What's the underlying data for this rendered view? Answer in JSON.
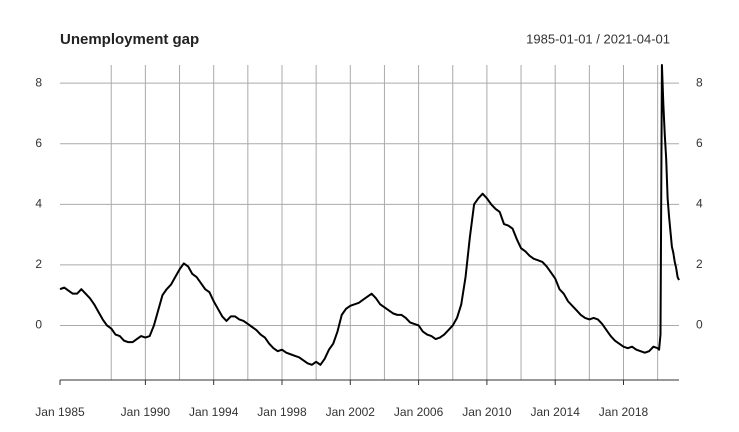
{
  "chart_data": {
    "type": "line",
    "title": "Unemployment gap",
    "subtitle": "1985-01-01 / 2021-04-01",
    "color": "#000000",
    "grid": true,
    "xlim": [
      "1985-01",
      "2021-04"
    ],
    "ylim": [
      -1.8,
      8.6
    ],
    "yticks": [
      0,
      2,
      4,
      6,
      8
    ],
    "xticks": [
      {
        "value": "1985-01",
        "label": "Jan 1985"
      },
      {
        "value": "1990-01",
        "label": "Jan 1990"
      },
      {
        "value": "1994-01",
        "label": "Jan 1994"
      },
      {
        "value": "1998-01",
        "label": "Jan 1998"
      },
      {
        "value": "2002-01",
        "label": "Jan 2002"
      },
      {
        "value": "2006-01",
        "label": "Jan 2006"
      },
      {
        "value": "2010-01",
        "label": "Jan 2010"
      },
      {
        "value": "2014-01",
        "label": "Jan 2014"
      },
      {
        "value": "2018-01",
        "label": "Jan 2018"
      }
    ],
    "xgrid": [
      "1988-01",
      "1990-01",
      "1992-01",
      "1994-01",
      "1996-01",
      "1998-01",
      "2000-01",
      "2002-01",
      "2004-01",
      "2006-01",
      "2008-01",
      "2010-01",
      "2012-01",
      "2014-01",
      "2016-01",
      "2018-01",
      "2020-01"
    ],
    "x": [
      "1985-01",
      "1985-04",
      "1985-07",
      "1985-10",
      "1986-01",
      "1986-04",
      "1986-07",
      "1986-10",
      "1987-01",
      "1987-04",
      "1987-07",
      "1987-10",
      "1988-01",
      "1988-04",
      "1988-07",
      "1988-10",
      "1989-01",
      "1989-04",
      "1989-07",
      "1989-10",
      "1990-01",
      "1990-04",
      "1990-07",
      "1990-10",
      "1991-01",
      "1991-04",
      "1991-07",
      "1991-10",
      "1992-01",
      "1992-04",
      "1992-07",
      "1992-10",
      "1993-01",
      "1993-04",
      "1993-07",
      "1993-10",
      "1994-01",
      "1994-04",
      "1994-07",
      "1994-10",
      "1995-01",
      "1995-04",
      "1995-07",
      "1995-10",
      "1996-01",
      "1996-04",
      "1996-07",
      "1996-10",
      "1997-01",
      "1997-04",
      "1997-07",
      "1997-10",
      "1998-01",
      "1998-04",
      "1998-07",
      "1998-10",
      "1999-01",
      "1999-04",
      "1999-07",
      "1999-10",
      "2000-01",
      "2000-04",
      "2000-07",
      "2000-10",
      "2001-01",
      "2001-04",
      "2001-07",
      "2001-10",
      "2002-01",
      "2002-04",
      "2002-07",
      "2002-10",
      "2003-01",
      "2003-04",
      "2003-07",
      "2003-10",
      "2004-01",
      "2004-04",
      "2004-07",
      "2004-10",
      "2005-01",
      "2005-04",
      "2005-07",
      "2005-10",
      "2006-01",
      "2006-04",
      "2006-07",
      "2006-10",
      "2007-01",
      "2007-04",
      "2007-07",
      "2007-10",
      "2008-01",
      "2008-04",
      "2008-07",
      "2008-10",
      "2009-01",
      "2009-04",
      "2009-07",
      "2009-10",
      "2010-01",
      "2010-04",
      "2010-07",
      "2010-10",
      "2011-01",
      "2011-04",
      "2011-07",
      "2011-10",
      "2012-01",
      "2012-04",
      "2012-07",
      "2012-10",
      "2013-01",
      "2013-04",
      "2013-07",
      "2013-10",
      "2014-01",
      "2014-04",
      "2014-07",
      "2014-10",
      "2015-01",
      "2015-04",
      "2015-07",
      "2015-10",
      "2016-01",
      "2016-04",
      "2016-07",
      "2016-10",
      "2017-01",
      "2017-04",
      "2017-07",
      "2017-10",
      "2018-01",
      "2018-04",
      "2018-07",
      "2018-10",
      "2019-01",
      "2019-04",
      "2019-07",
      "2019-10",
      "2020-01",
      "2020-02",
      "2020-03",
      "2020-04",
      "2020-05",
      "2020-06",
      "2020-07",
      "2020-08",
      "2020-09",
      "2020-10",
      "2020-11",
      "2020-12",
      "2021-01",
      "2021-02",
      "2021-03",
      "2021-04"
    ],
    "values": [
      1.2,
      1.25,
      1.15,
      1.05,
      1.05,
      1.2,
      1.05,
      0.9,
      0.7,
      0.45,
      0.2,
      0.0,
      -0.1,
      -0.3,
      -0.35,
      -0.5,
      -0.55,
      -0.55,
      -0.45,
      -0.35,
      -0.4,
      -0.35,
      0.0,
      0.5,
      1.0,
      1.2,
      1.35,
      1.6,
      1.85,
      2.05,
      1.95,
      1.7,
      1.6,
      1.4,
      1.2,
      1.1,
      0.8,
      0.55,
      0.3,
      0.15,
      0.3,
      0.3,
      0.2,
      0.15,
      0.05,
      -0.05,
      -0.15,
      -0.3,
      -0.4,
      -0.6,
      -0.75,
      -0.85,
      -0.8,
      -0.9,
      -0.95,
      -1.0,
      -1.05,
      -1.15,
      -1.25,
      -1.3,
      -1.2,
      -1.3,
      -1.1,
      -0.8,
      -0.6,
      -0.2,
      0.35,
      0.55,
      0.65,
      0.7,
      0.75,
      0.85,
      0.95,
      1.05,
      0.9,
      0.7,
      0.6,
      0.5,
      0.4,
      0.35,
      0.35,
      0.25,
      0.1,
      0.05,
      0.0,
      -0.2,
      -0.3,
      -0.35,
      -0.45,
      -0.4,
      -0.3,
      -0.15,
      0.0,
      0.25,
      0.7,
      1.6,
      2.9,
      4.0,
      4.2,
      4.35,
      4.2,
      4.0,
      3.85,
      3.75,
      3.35,
      3.3,
      3.2,
      2.85,
      2.55,
      2.45,
      2.3,
      2.2,
      2.15,
      2.1,
      1.95,
      1.75,
      1.55,
      1.2,
      1.05,
      0.8,
      0.65,
      0.5,
      0.35,
      0.25,
      0.2,
      0.25,
      0.2,
      0.05,
      -0.15,
      -0.35,
      -0.5,
      -0.6,
      -0.7,
      -0.75,
      -0.7,
      -0.8,
      -0.85,
      -0.9,
      -0.85,
      -0.7,
      -0.75,
      -0.8,
      -0.3,
      8.6,
      7.3,
      6.3,
      5.5,
      4.2,
      3.6,
      3.1,
      2.6,
      2.4,
      2.1,
      1.9,
      1.6,
      1.5
    ]
  }
}
